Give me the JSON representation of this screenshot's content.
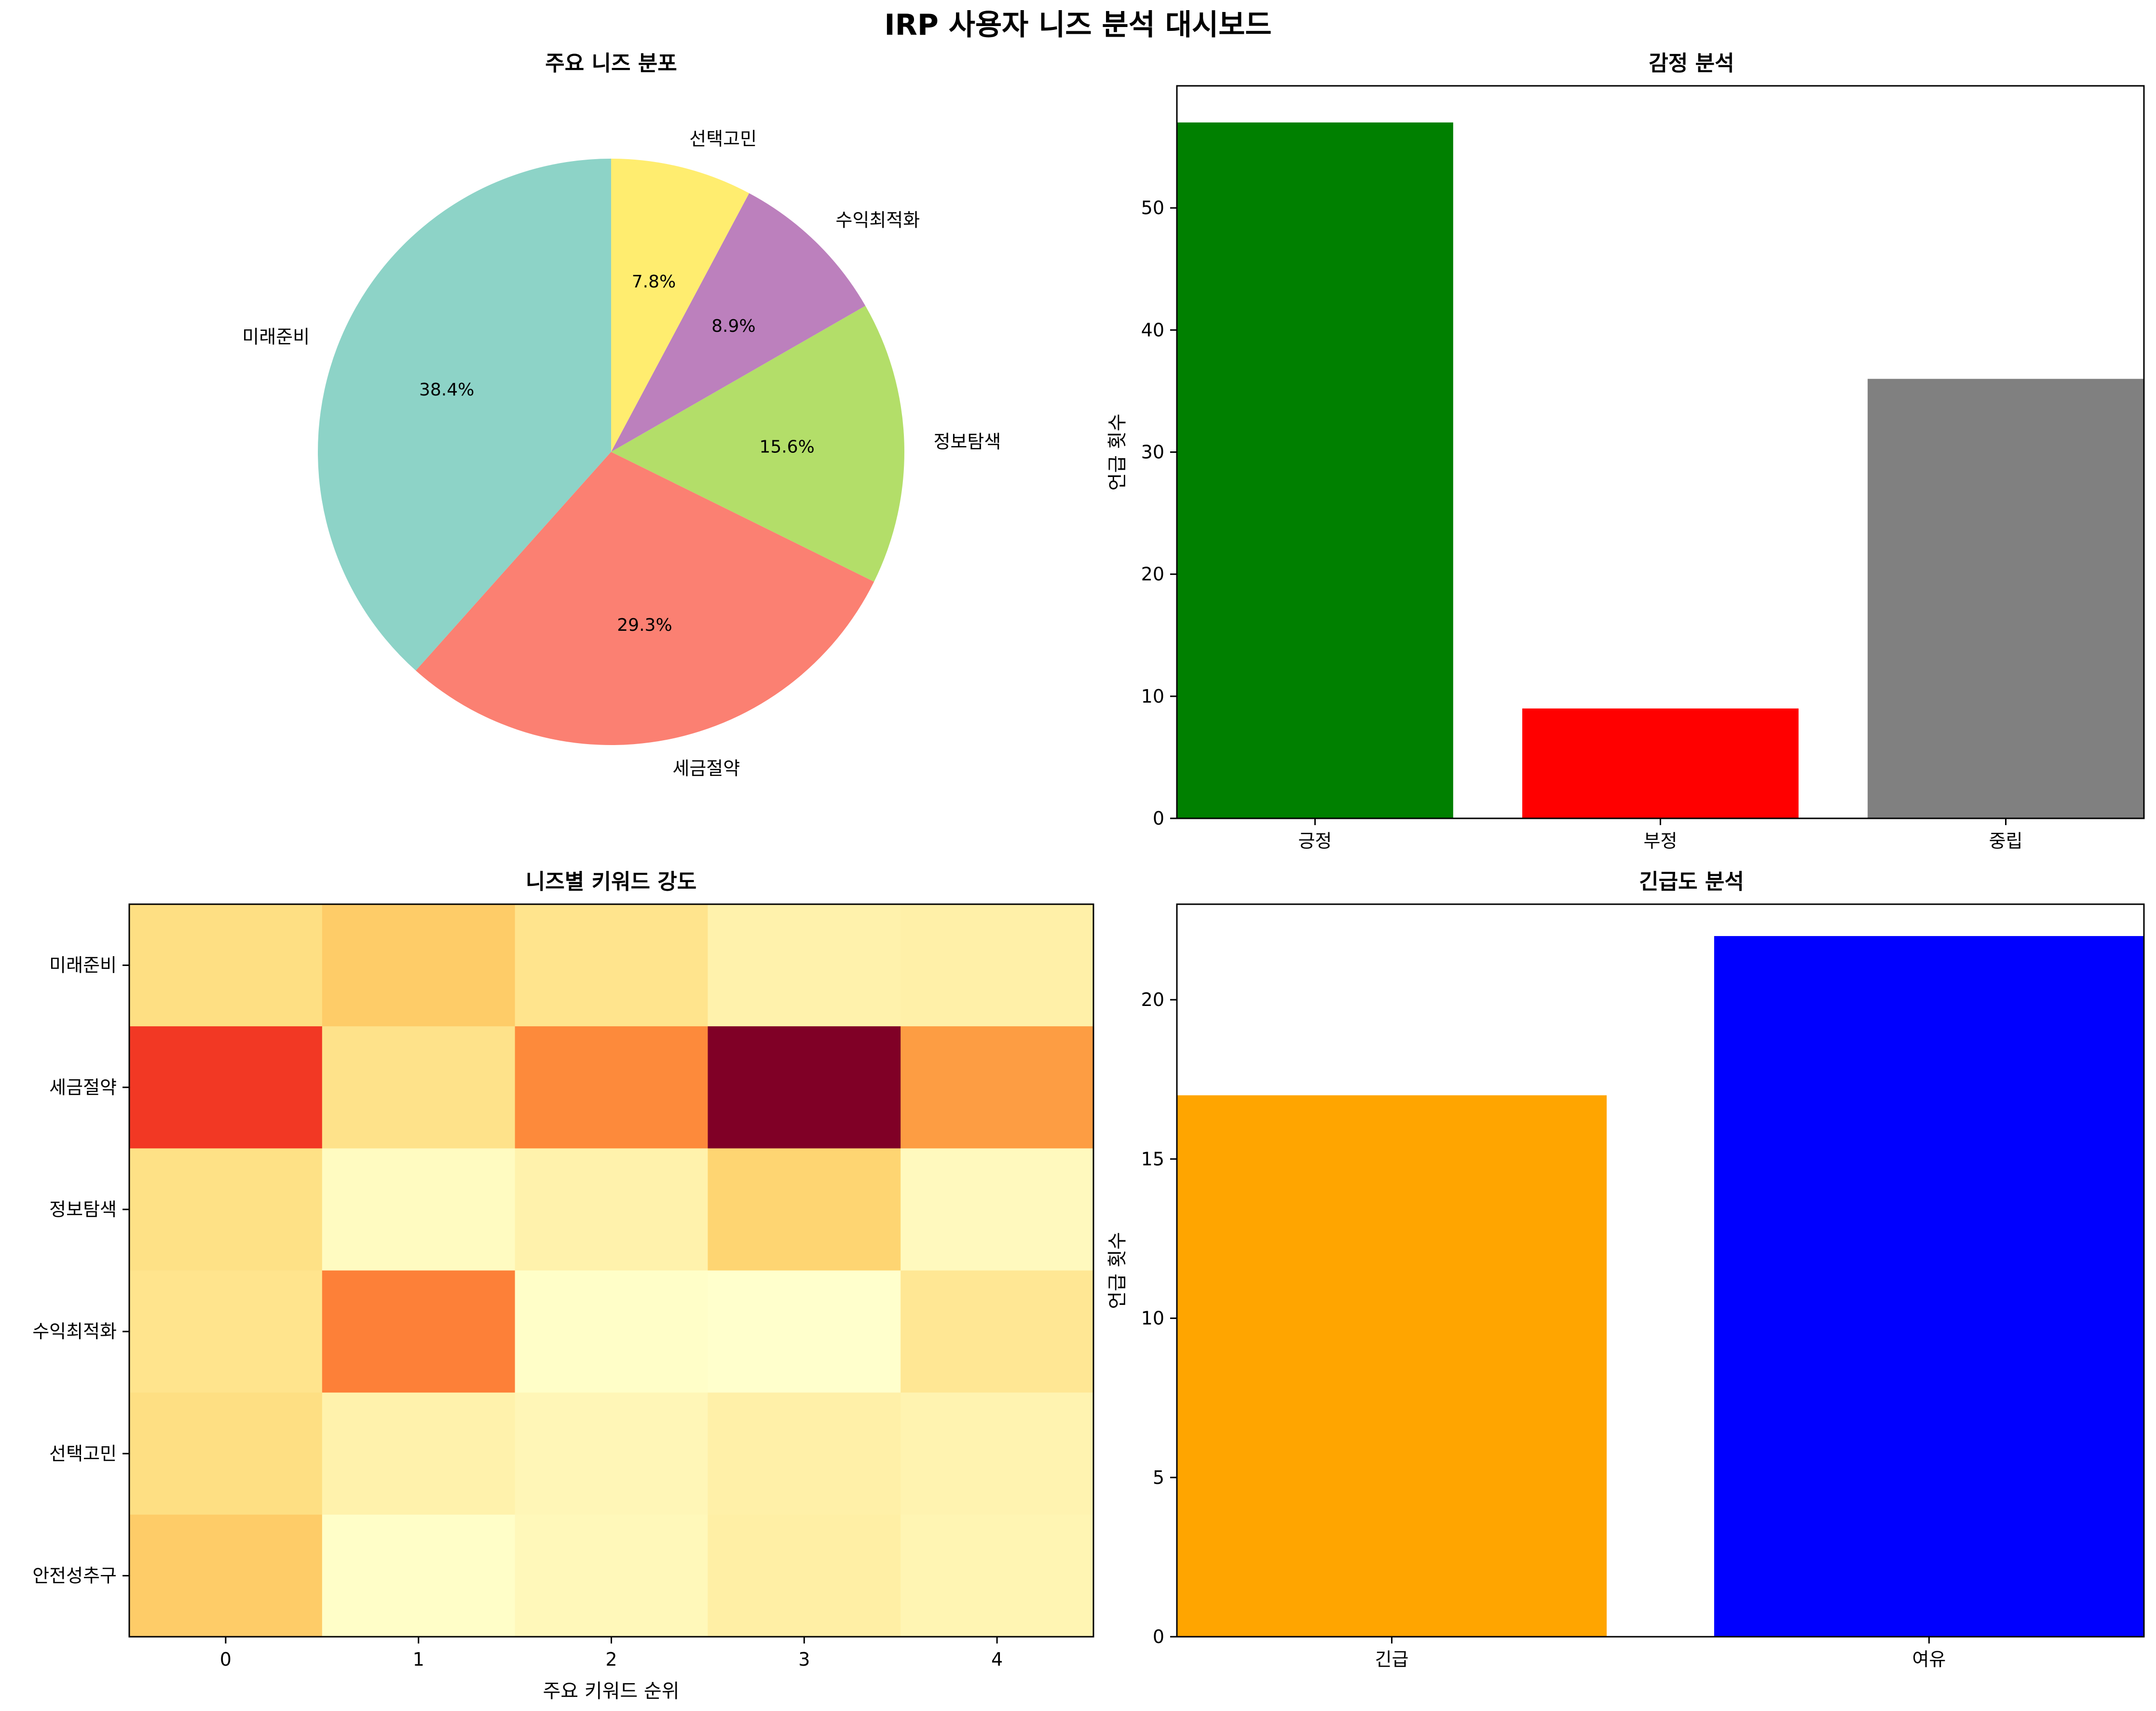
{
  "dashboard": {
    "title": "IRP 사용자 니즈 분석 대시보드"
  },
  "chart_data": [
    {
      "type": "pie",
      "title": "주요 니즈 분포",
      "labels": [
        "미래준비",
        "세금절약",
        "정보탐색",
        "수익최적화",
        "선택고민"
      ],
      "values": [
        38.4,
        29.3,
        15.6,
        8.9,
        7.8
      ],
      "pct_labels": [
        "38.4%",
        "29.3%",
        "15.6%",
        "8.9%",
        "7.8%"
      ],
      "colors": [
        "#8dd3c7",
        "#fb8072",
        "#b3de69",
        "#bc80bd",
        "#ffed6f"
      ],
      "start_angle_deg": 90,
      "counterclockwise": true
    },
    {
      "type": "bar",
      "title": "감정 분석",
      "categories": [
        "긍정",
        "부정",
        "중립"
      ],
      "values": [
        57,
        9,
        36
      ],
      "colors": [
        "#008000",
        "#ff0000",
        "#808080"
      ],
      "ylabel": "언급 횟수",
      "xlabel": "",
      "ylim": [
        0,
        60
      ],
      "yticks": [
        0,
        10,
        20,
        30,
        40,
        50
      ]
    },
    {
      "type": "heatmap",
      "title": "니즈별 키워드 강도",
      "rows": [
        "미래준비",
        "세금절약",
        "정보탐색",
        "수익최적화",
        "선택고민",
        "안전성추구"
      ],
      "columns": [
        "0",
        "1",
        "2",
        "3",
        "4"
      ],
      "xlabel": "주요 키워드 순위",
      "colormap": "YlOrRd",
      "values": [
        [
          0.22,
          0.3,
          0.19,
          0.1,
          0.11
        ],
        [
          0.68,
          0.2,
          0.51,
          1.0,
          0.45
        ],
        [
          0.21,
          0.04,
          0.1,
          0.27,
          0.05
        ],
        [
          0.19,
          0.53,
          0.02,
          0.01,
          0.17
        ],
        [
          0.22,
          0.1,
          0.07,
          0.11,
          0.09
        ],
        [
          0.3,
          0.02,
          0.06,
          0.12,
          0.08
        ]
      ]
    },
    {
      "type": "bar",
      "title": "긴급도 분석",
      "categories": [
        "긴급",
        "여유"
      ],
      "values": [
        17,
        22
      ],
      "colors": [
        "#ffa500",
        "#0000ff"
      ],
      "ylabel": "언급 횟수",
      "xlabel": "",
      "ylim": [
        0,
        23
      ],
      "yticks": [
        0,
        5,
        10,
        15,
        20
      ]
    }
  ]
}
